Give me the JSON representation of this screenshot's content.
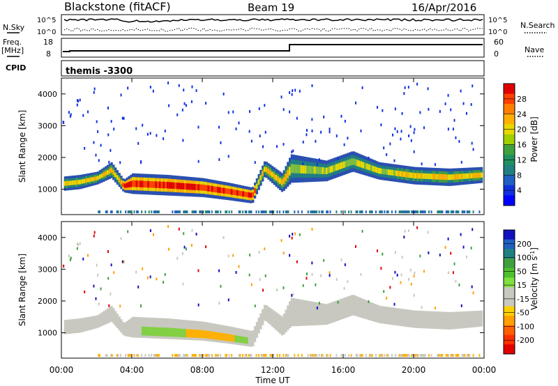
{
  "header": {
    "title": "Blackstone (fitACF)",
    "beam": "Beam 19",
    "date": "16/Apr/2016"
  },
  "top_panels": {
    "nsky_label": "N.Sky",
    "nsky_hi": "10^5",
    "nsky_lo": "10^0",
    "nsearch_label": "N.Search",
    "freq_label": "Freq.",
    "freq_unit": "[MHz]",
    "freq_hi": "18",
    "freq_lo": "8",
    "nave_hi": "60",
    "nave_lo": "0",
    "nave_label": "Nave",
    "cpid_label": "CPID",
    "cpid_value": "themis -3300"
  },
  "colorbars": {
    "power": {
      "label": "Power [dB]",
      "ticks": [
        "28",
        "24",
        "20",
        "16",
        "12",
        "8",
        "4"
      ],
      "colors": [
        "#e00000",
        "#ff4000",
        "#ff8000",
        "#ffb000",
        "#e8d800",
        "#a0d000",
        "#40a040",
        "#209060",
        "#208080",
        "#2060c0",
        "#1030e0",
        "#0000ff"
      ]
    },
    "velocity": {
      "label": "Velocity",
      "unit": "[m s",
      "unit_exp": "-1",
      "unit_close": "]",
      "ticks": [
        "200",
        "100",
        "50",
        "15",
        "-15",
        "-50",
        "-100",
        "-200"
      ],
      "colors": [
        "#1010c0",
        "#2060c0",
        "#208080",
        "#40a040",
        "#50c030",
        "#80e040",
        "#c8c8c0",
        "#c8c8c0",
        "#ffd000",
        "#ffa000",
        "#ff6000",
        "#ff3000",
        "#e00000"
      ]
    }
  },
  "chart_data": [
    {
      "type": "heatmap",
      "name": "power",
      "ylabel": "Slant Range [km]",
      "yticks": [
        1000,
        2000,
        3000,
        4000
      ],
      "ylim": [
        200,
        4500
      ],
      "xlim": [
        0,
        24
      ],
      "band": [
        {
          "t": 0.1,
          "lo": 950,
          "hi": 1400
        },
        {
          "t": 1.0,
          "lo": 1000,
          "hi": 1450
        },
        {
          "t": 2.0,
          "lo": 1150,
          "hi": 1550
        },
        {
          "t": 2.8,
          "lo": 1350,
          "hi": 1850
        },
        {
          "t": 3.5,
          "lo": 900,
          "hi": 1300
        },
        {
          "t": 4.0,
          "lo": 850,
          "hi": 1500
        },
        {
          "t": 6.0,
          "lo": 800,
          "hi": 1450
        },
        {
          "t": 8.0,
          "lo": 750,
          "hi": 1350
        },
        {
          "t": 9.5,
          "lo": 650,
          "hi": 1200
        },
        {
          "t": 10.8,
          "lo": 550,
          "hi": 1050
        },
        {
          "t": 11.5,
          "lo": 1400,
          "hi": 1900
        },
        {
          "t": 12.5,
          "lo": 900,
          "hi": 1500
        },
        {
          "t": 13.0,
          "lo": 1200,
          "hi": 2100
        },
        {
          "t": 15.0,
          "lo": 1250,
          "hi": 1900
        },
        {
          "t": 16.5,
          "lo": 1550,
          "hi": 2200
        },
        {
          "t": 18.0,
          "lo": 1300,
          "hi": 1850
        },
        {
          "t": 20.0,
          "lo": 1150,
          "hi": 1700
        },
        {
          "t": 22.0,
          "lo": 1100,
          "hi": 1650
        },
        {
          "t": 23.9,
          "lo": 1200,
          "hi": 1700
        }
      ]
    },
    {
      "type": "heatmap",
      "name": "velocity",
      "ylabel": "Slant Range [km]",
      "xlabel": "Time UT",
      "yticks": [
        1000,
        2000,
        3000,
        4000
      ],
      "ylim": [
        200,
        4500
      ],
      "xlim": [
        0,
        24
      ],
      "xticks": [
        "00:00",
        "04:00",
        "08:00",
        "12:00",
        "16:00",
        "20:00",
        "00:00"
      ]
    }
  ]
}
